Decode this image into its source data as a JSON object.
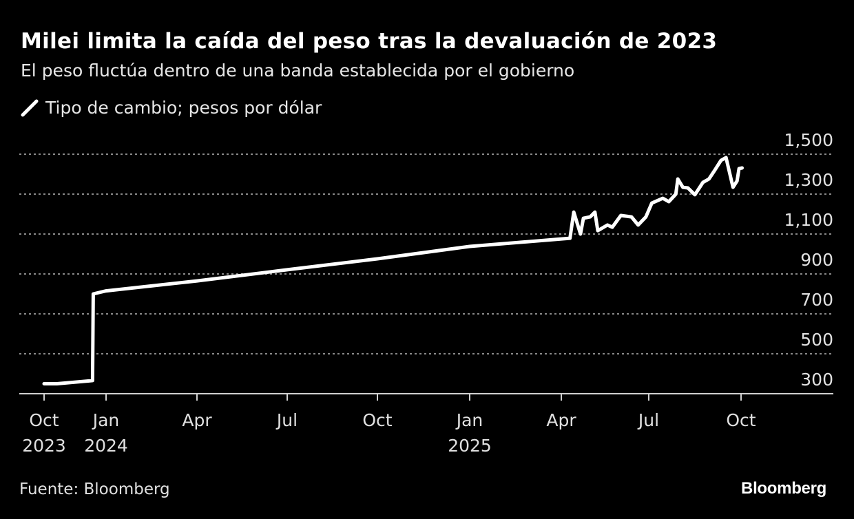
{
  "title": "Milei limita la caída del peso tras la devaluación de 2023",
  "subtitle": "El peso fluctúa dentro de una banda establecida por el gobierno",
  "source": "Fuente: Bloomberg",
  "logo": "Bloomberg",
  "colors": {
    "background": "#000000",
    "line": "#ffffff",
    "grid": "#8a8a8a",
    "text": "#e0e0e0"
  },
  "chart_data": {
    "type": "line",
    "title": "Milei limita la caída del peso tras la devaluación de 2023",
    "subtitle": "El peso fluctúa dentro de una banda establecida por el gobierno",
    "ylabel": "",
    "xlabel": "",
    "ylim": [
      300,
      1500
    ],
    "yticks": [
      300,
      500,
      700,
      900,
      1100,
      1300,
      1500
    ],
    "ytick_labels": [
      "300",
      "500",
      "700",
      "900",
      "1,100",
      "1,300",
      "1,500"
    ],
    "y_axis_side": "right",
    "grid": "horizontal dotted",
    "xticks": [
      {
        "date": "2023-10-01",
        "label": [
          "Oct",
          "2023"
        ]
      },
      {
        "date": "2024-01-01",
        "label": [
          "Jan",
          "2024"
        ]
      },
      {
        "date": "2024-04-01",
        "label": [
          "Apr"
        ]
      },
      {
        "date": "2024-07-01",
        "label": [
          "Jul"
        ]
      },
      {
        "date": "2024-10-01",
        "label": [
          "Oct"
        ]
      },
      {
        "date": "2025-01-01",
        "label": [
          "Jan",
          "2025"
        ]
      },
      {
        "date": "2025-04-01",
        "label": [
          "Apr"
        ]
      },
      {
        "date": "2025-07-01",
        "label": [
          "Jul"
        ]
      },
      {
        "date": "2025-10-01",
        "label": [
          "Oct"
        ]
      }
    ],
    "legend": {
      "placement": "top-left",
      "entries": [
        "Tipo de cambio; pesos por dólar"
      ]
    },
    "series": [
      {
        "name": "Tipo de cambio; pesos por dólar",
        "color": "#ffffff",
        "points": [
          [
            "2023-10-01",
            350
          ],
          [
            "2023-10-20",
            350
          ],
          [
            "2023-12-12",
            366
          ],
          [
            "2023-12-13",
            800
          ],
          [
            "2024-01-01",
            815
          ],
          [
            "2024-04-01",
            865
          ],
          [
            "2024-07-01",
            921
          ],
          [
            "2024-10-01",
            976
          ],
          [
            "2025-01-01",
            1038
          ],
          [
            "2025-04-10",
            1079
          ],
          [
            "2025-04-14",
            1210
          ],
          [
            "2025-04-21",
            1100
          ],
          [
            "2025-04-24",
            1179
          ],
          [
            "2025-05-01",
            1186
          ],
          [
            "2025-05-06",
            1210
          ],
          [
            "2025-05-09",
            1117
          ],
          [
            "2025-05-19",
            1145
          ],
          [
            "2025-05-24",
            1134
          ],
          [
            "2025-06-02",
            1193
          ],
          [
            "2025-06-13",
            1186
          ],
          [
            "2025-06-20",
            1145
          ],
          [
            "2025-06-28",
            1186
          ],
          [
            "2025-07-04",
            1255
          ],
          [
            "2025-07-15",
            1279
          ],
          [
            "2025-07-21",
            1262
          ],
          [
            "2025-07-28",
            1300
          ],
          [
            "2025-07-30",
            1376
          ],
          [
            "2025-08-04",
            1334
          ],
          [
            "2025-08-09",
            1331
          ],
          [
            "2025-08-16",
            1297
          ],
          [
            "2025-08-24",
            1359
          ],
          [
            "2025-08-30",
            1376
          ],
          [
            "2025-09-05",
            1421
          ],
          [
            "2025-09-11",
            1469
          ],
          [
            "2025-09-16",
            1483
          ],
          [
            "2025-09-23",
            1334
          ],
          [
            "2025-09-27",
            1366
          ],
          [
            "2025-09-29",
            1428
          ],
          [
            "2025-10-02",
            1431
          ]
        ]
      }
    ]
  }
}
